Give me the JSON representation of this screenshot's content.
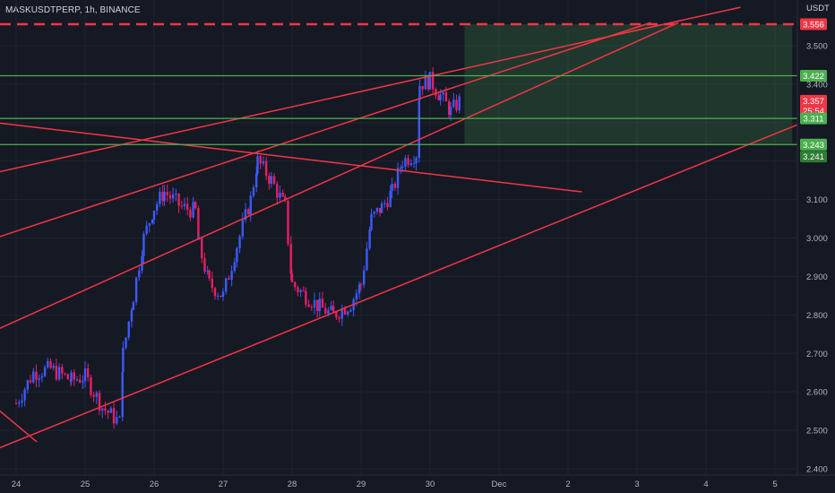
{
  "header": {
    "symbol_title": "MASKUSDTPERP, 1h, BINANCE"
  },
  "price_axis": {
    "unit": "USDT",
    "ticks": [
      "3.500",
      "3.400",
      "3.100",
      "3.000",
      "2.900",
      "2.800",
      "2.700",
      "2.600",
      "2.500",
      "2.400"
    ]
  },
  "time_axis": {
    "labels": [
      "24",
      "25",
      "26",
      "27",
      "28",
      "29",
      "30",
      "Dec",
      "2",
      "3",
      "4",
      "5"
    ]
  },
  "price_tags": [
    {
      "label": "3.556",
      "price": 3.556,
      "color": "#f23645"
    },
    {
      "label": "3.422",
      "price": 3.422,
      "color": "#4caf50"
    },
    {
      "label": "3.357",
      "price": 3.357,
      "color": "#f23645",
      "sub": "25:54"
    },
    {
      "label": "3.311",
      "price": 3.311,
      "color": "#4caf50"
    },
    {
      "label": "3.243",
      "price": 3.243,
      "color": "#4caf50"
    },
    {
      "label": "3.241",
      "price": 3.241,
      "color": "#2e7d32"
    }
  ],
  "chart_data": {
    "type": "line",
    "title": "MASKUSDTPERP, 1h, BINANCE",
    "x_unit": "days (Nov 24 = 24)",
    "ylim": [
      2.4,
      3.56
    ],
    "y_ticks": [
      2.4,
      2.5,
      2.6,
      2.7,
      2.8,
      2.9,
      3.0,
      3.1,
      3.5
    ],
    "grid": true,
    "candle_colors": {
      "up": "#3d5afe",
      "down": "#e91e63"
    },
    "series": [
      {
        "values": [
          [
            24.0,
            2.57
          ],
          [
            24.25,
            2.65
          ],
          [
            24.5,
            2.66
          ],
          [
            24.8,
            2.63
          ],
          [
            25.0,
            2.64
          ],
          [
            25.25,
            2.56
          ],
          [
            25.5,
            2.52
          ],
          [
            25.55,
            2.7
          ],
          [
            25.7,
            2.85
          ],
          [
            25.85,
            3.0
          ],
          [
            26.0,
            3.08
          ],
          [
            26.15,
            3.12
          ],
          [
            26.4,
            3.08
          ],
          [
            26.6,
            3.07
          ],
          [
            26.65,
            2.98
          ],
          [
            26.8,
            2.88
          ],
          [
            27.0,
            2.85
          ],
          [
            27.2,
            2.98
          ],
          [
            27.4,
            3.1
          ],
          [
            27.5,
            3.2
          ],
          [
            27.7,
            3.15
          ],
          [
            27.9,
            3.08
          ],
          [
            28.0,
            2.88
          ],
          [
            28.2,
            2.85
          ],
          [
            28.4,
            2.82
          ],
          [
            28.6,
            2.8
          ],
          [
            28.85,
            2.83
          ],
          [
            29.0,
            2.88
          ],
          [
            29.15,
            3.05
          ],
          [
            29.3,
            3.08
          ],
          [
            29.45,
            3.12
          ],
          [
            29.6,
            3.2
          ],
          [
            29.8,
            3.22
          ],
          [
            29.85,
            3.4
          ],
          [
            30.0,
            3.41
          ],
          [
            30.15,
            3.37
          ],
          [
            30.3,
            3.33
          ],
          [
            30.45,
            3.36
          ]
        ]
      }
    ],
    "horizontal_levels": [
      {
        "price": 3.556,
        "style": "dashed",
        "color": "#f23645"
      },
      {
        "price": 3.422,
        "style": "solid",
        "color": "#4caf50"
      },
      {
        "price": 3.311,
        "style": "solid",
        "color": "#4caf50"
      },
      {
        "price": 3.243,
        "style": "solid",
        "color": "#4caf50"
      }
    ],
    "target_zone": {
      "x_from": 30.5,
      "x_to": 35.25,
      "y_from": 3.243,
      "y_to": 3.556,
      "color": "#4caf50"
    },
    "trend_lines": [
      {
        "from": [
          23.7,
          3.3
        ],
        "to": [
          32.2,
          3.12
        ]
      },
      {
        "from": [
          23.7,
          3.17
        ],
        "to": [
          34.5,
          3.6
        ]
      },
      {
        "from": [
          23.7,
          3.0
        ],
        "to": [
          33.2,
          3.56
        ]
      },
      {
        "from": [
          23.7,
          2.76
        ],
        "to": [
          33.6,
          3.56
        ]
      },
      {
        "from": [
          23.7,
          2.45
        ],
        "to": [
          35.4,
          3.3
        ]
      },
      {
        "from": [
          23.7,
          2.56
        ],
        "to": [
          24.3,
          2.47
        ]
      }
    ]
  }
}
